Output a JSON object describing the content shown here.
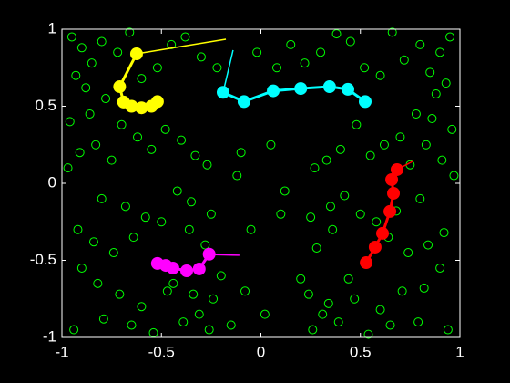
{
  "chart_data": {
    "type": "scatter-trails",
    "xlim": [
      -1,
      1
    ],
    "ylim": [
      -1,
      1
    ],
    "xticks": [
      -1,
      -0.5,
      0,
      0.5,
      1
    ],
    "yticks": [
      -1,
      -0.5,
      0,
      0.5,
      1
    ],
    "points": {
      "color": "#00ff00",
      "x": [
        -0.95,
        -0.9,
        -0.85,
        -0.8,
        -0.93,
        -0.88,
        -0.78,
        -0.72,
        -0.96,
        -0.86,
        -0.7,
        -0.62,
        -0.55,
        -0.48,
        -0.4,
        -0.33,
        -0.27,
        -0.45,
        -0.38,
        -0.3,
        -0.22,
        -0.52,
        -0.6,
        -0.66,
        -0.75,
        -0.83,
        -0.91,
        -0.97,
        -0.8,
        -0.68,
        -0.58,
        -0.42,
        -0.35,
        -0.25,
        -0.92,
        -0.84,
        -0.74,
        -0.64,
        -0.5,
        -0.36,
        -0.28,
        -0.2,
        -0.9,
        -0.82,
        -0.71,
        -0.6,
        -0.47,
        -0.39,
        -0.31,
        -0.24,
        -0.94,
        -0.79,
        -0.65,
        -0.54,
        -0.44,
        -0.34,
        -0.26,
        0.95,
        0.9,
        0.85,
        0.8,
        0.93,
        0.88,
        0.78,
        0.72,
        0.96,
        0.86,
        0.7,
        0.62,
        0.55,
        0.48,
        0.4,
        0.33,
        0.27,
        0.45,
        0.38,
        0.3,
        0.22,
        0.52,
        0.6,
        0.66,
        0.75,
        0.83,
        0.91,
        0.97,
        0.8,
        0.68,
        0.58,
        0.42,
        0.35,
        0.25,
        0.92,
        0.84,
        0.74,
        0.64,
        0.5,
        0.36,
        0.28,
        0.2,
        0.9,
        0.82,
        0.71,
        0.6,
        0.47,
        0.39,
        0.31,
        0.24,
        0.94,
        0.79,
        0.65,
        0.54,
        0.44,
        0.34,
        0.26,
        -0.1,
        -0.05,
        0.05,
        0.1,
        -0.12,
        0.12,
        -0.08,
        0.08,
        0.15,
        -0.15,
        0.02,
        -0.02
      ],
      "y": [
        0.95,
        0.88,
        0.78,
        0.92,
        0.7,
        0.62,
        0.55,
        0.85,
        0.4,
        0.45,
        0.38,
        0.3,
        0.22,
        0.35,
        0.28,
        0.18,
        0.12,
        0.9,
        0.95,
        0.82,
        0.75,
        0.75,
        0.68,
        0.98,
        0.15,
        0.25,
        0.2,
        0.1,
        -0.1,
        -0.15,
        -0.22,
        -0.05,
        -0.12,
        -0.2,
        -0.3,
        -0.38,
        -0.45,
        -0.35,
        -0.25,
        -0.3,
        -0.4,
        -0.6,
        -0.55,
        -0.65,
        -0.72,
        -0.8,
        -0.7,
        -0.9,
        -0.85,
        -0.75,
        -0.95,
        -0.88,
        -0.92,
        -0.97,
        -0.65,
        -0.72,
        -0.95,
        0.95,
        0.85,
        0.72,
        0.9,
        0.65,
        0.58,
        0.45,
        0.8,
        0.35,
        0.42,
        0.3,
        0.25,
        0.18,
        0.38,
        0.22,
        0.15,
        0.1,
        0.92,
        0.97,
        0.85,
        0.78,
        0.75,
        0.7,
        0.98,
        0.12,
        0.25,
        0.15,
        0.05,
        -0.1,
        -0.18,
        -0.25,
        -0.08,
        -0.15,
        -0.22,
        -0.32,
        -0.4,
        -0.45,
        -0.35,
        -0.2,
        -0.3,
        -0.42,
        -0.62,
        -0.55,
        -0.68,
        -0.7,
        -0.82,
        -0.75,
        -0.9,
        -0.85,
        -0.72,
        -0.95,
        -0.9,
        -0.92,
        -0.98,
        -0.62,
        -0.78,
        -0.95,
        0.2,
        -0.3,
        0.25,
        -0.2,
        0.05,
        -0.05,
        -0.7,
        0.75,
        0.9,
        -0.92,
        -0.85,
        0.85
      ]
    },
    "series": [
      {
        "color": "#ffff00",
        "width": 1.5,
        "marker": false,
        "x": [
          -0.176,
          -0.625
        ],
        "y": [
          0.935,
          0.84
        ]
      },
      {
        "color": "#ffff00",
        "width": 3,
        "marker": true,
        "x": [
          -0.625,
          -0.71,
          -0.69,
          -0.65,
          -0.6,
          -0.55,
          -0.52
        ],
        "y": [
          0.84,
          0.627,
          0.527,
          0.5,
          0.49,
          0.5,
          0.53
        ]
      },
      {
        "color": "#00ffff",
        "width": 1.5,
        "marker": false,
        "x": [
          -0.14,
          -0.19
        ],
        "y": [
          0.864,
          0.59
        ]
      },
      {
        "color": "#00ffff",
        "width": 3,
        "marker": true,
        "x": [
          -0.19,
          -0.085,
          0.062,
          0.2,
          0.345,
          0.437,
          0.524
        ],
        "y": [
          0.59,
          0.53,
          0.6,
          0.615,
          0.627,
          0.61,
          0.53
        ]
      },
      {
        "color": "#ff0000",
        "width": 1.5,
        "marker": false,
        "x": [
          0.762,
          0.684
        ],
        "y": [
          0.142,
          0.089
        ]
      },
      {
        "color": "#ff0000",
        "width": 3,
        "marker": true,
        "x": [
          0.684,
          0.657,
          0.666,
          0.648,
          0.611,
          0.574,
          0.529
        ],
        "y": [
          0.089,
          0.024,
          -0.065,
          -0.183,
          -0.325,
          -0.414,
          -0.515
        ]
      },
      {
        "color": "#ff00ff",
        "width": 1.5,
        "marker": false,
        "x": [
          -0.108,
          -0.259
        ],
        "y": [
          -0.467,
          -0.462
        ]
      },
      {
        "color": "#ff00ff",
        "width": 3,
        "marker": true,
        "x": [
          -0.26,
          -0.31,
          -0.373,
          -0.442,
          -0.478,
          -0.52
        ],
        "y": [
          -0.46,
          -0.556,
          -0.568,
          -0.55,
          -0.533,
          -0.52
        ]
      }
    ]
  }
}
